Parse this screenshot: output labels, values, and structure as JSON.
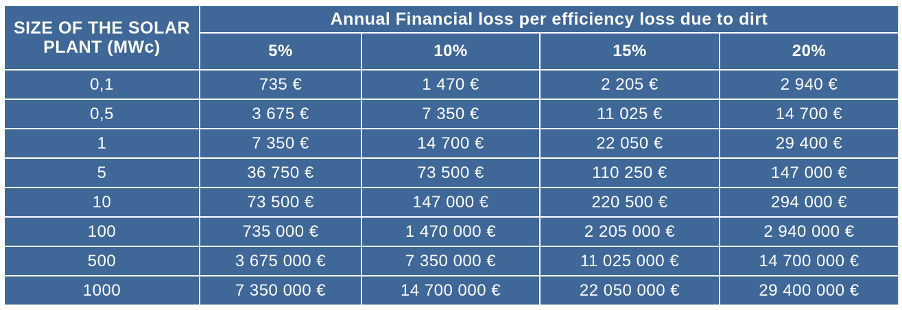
{
  "table": {
    "corner_header": "SIZE OF THE SOLAR PLANT (MWc)",
    "group_header": "Annual Financial loss per efficiency loss due to dirt",
    "columns": [
      "5%",
      "10%",
      "15%",
      "20%"
    ],
    "rows": [
      {
        "size": "0,1",
        "values": [
          "735 €",
          "1 470 €",
          "2 205 €",
          "2 940 €"
        ]
      },
      {
        "size": "0,5",
        "values": [
          "3 675 €",
          "7 350 €",
          "11 025 €",
          "14 700 €"
        ]
      },
      {
        "size": "1",
        "values": [
          "7 350 €",
          "14 700 €",
          "22 050 €",
          "29 400 €"
        ]
      },
      {
        "size": "5",
        "values": [
          "36 750 €",
          "73 500 €",
          "110 250 €",
          "147 000 €"
        ]
      },
      {
        "size": "10",
        "values": [
          "73 500 €",
          "147 000 €",
          "220 500 €",
          "294 000 €"
        ]
      },
      {
        "size": "100",
        "values": [
          "735 000 €",
          "1 470 000 €",
          "2 205 000 €",
          "2 940 000 €"
        ]
      },
      {
        "size": "500",
        "values": [
          "3 675 000 €",
          "7 350 000 €",
          "11 025 000 €",
          "14 700 000 €"
        ]
      },
      {
        "size": "1000",
        "values": [
          "7 350 000 €",
          "14 700 000 €",
          "22 050 000 €",
          "29 400 000 €"
        ]
      }
    ]
  },
  "colors": {
    "cell_background": "#3f6797",
    "text": "#ffffff",
    "grid_lines": "#ffffff"
  }
}
